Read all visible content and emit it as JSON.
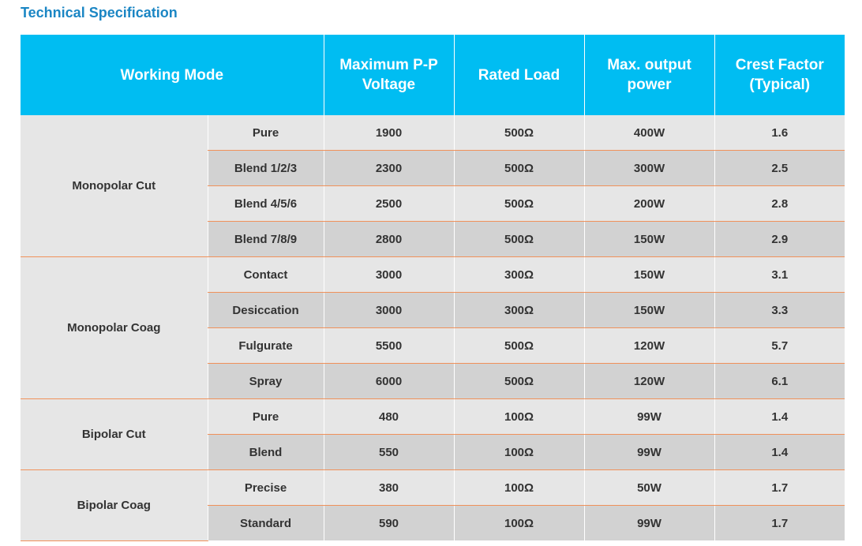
{
  "header": {
    "title": "Technical Specification"
  },
  "table": {
    "columns": [
      "Working Mode",
      "Maximum P-P Voltage",
      "Rated Load",
      "Max. output power",
      "Crest Factor (Typical)"
    ],
    "groups": [
      {
        "name": "Monopolar Cut",
        "rows": [
          [
            "Pure",
            "1900",
            "500Ω",
            "400W",
            "1.6"
          ],
          [
            "Blend 1/2/3",
            "2300",
            "500Ω",
            "300W",
            "2.5"
          ],
          [
            "Blend 4/5/6",
            "2500",
            "500Ω",
            "200W",
            "2.8"
          ],
          [
            "Blend 7/8/9",
            "2800",
            "500Ω",
            "150W",
            "2.9"
          ]
        ]
      },
      {
        "name": "Monopolar Coag",
        "rows": [
          [
            "Contact",
            "3000",
            "300Ω",
            "150W",
            "3.1"
          ],
          [
            "Desiccation",
            "3000",
            "300Ω",
            "150W",
            "3.3"
          ],
          [
            "Fulgurate",
            "5500",
            "500Ω",
            "120W",
            "5.7"
          ],
          [
            "Spray",
            "6000",
            "500Ω",
            "120W",
            "6.1"
          ]
        ]
      },
      {
        "name": "Bipolar Cut",
        "rows": [
          [
            "Pure",
            "480",
            "100Ω",
            "99W",
            "1.4"
          ],
          [
            "Blend",
            "550",
            "100Ω",
            "99W",
            "1.4"
          ]
        ]
      },
      {
        "name": "Bipolar Coag",
        "rows": [
          [
            "Precise",
            "380",
            "100Ω",
            "50W",
            "1.7"
          ],
          [
            "Standard",
            "590",
            "100Ω",
            "99W",
            "1.7"
          ]
        ]
      }
    ]
  }
}
